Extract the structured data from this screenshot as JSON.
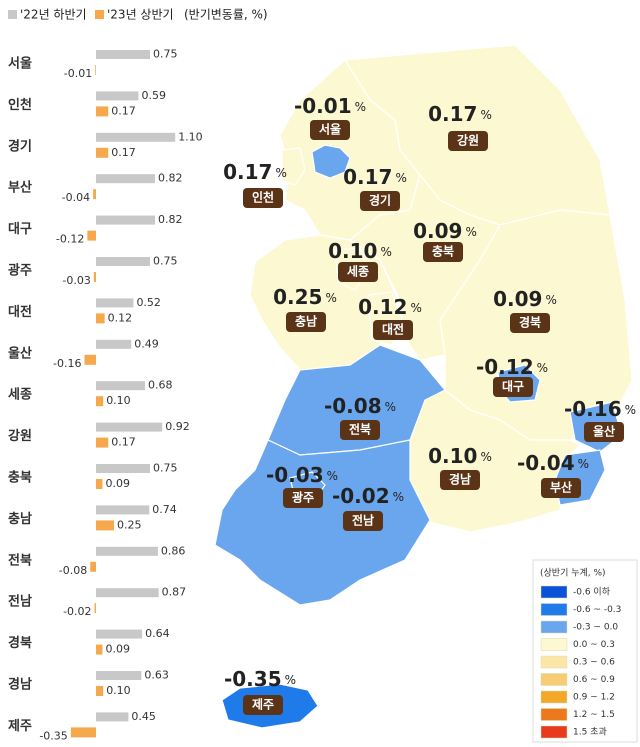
{
  "chart_data": [
    {
      "type": "hbar",
      "subtitle": "(반기변동률, %)",
      "categories": [
        "서울",
        "인천",
        "경기",
        "부산",
        "대구",
        "광주",
        "대전",
        "울산",
        "세종",
        "강원",
        "충북",
        "충남",
        "전북",
        "전남",
        "경북",
        "경남",
        "제주"
      ],
      "series": [
        {
          "name": "'22년 하반기",
          "color": "#c8c8c8",
          "values": [
            0.75,
            0.59,
            1.1,
            0.82,
            0.82,
            0.75,
            0.52,
            0.49,
            0.68,
            0.92,
            0.75,
            0.74,
            0.86,
            0.87,
            0.64,
            0.63,
            0.45
          ],
          "value_labels": [
            "0.75",
            "0.59",
            "1.10",
            "0.82",
            "0.82",
            "0.75",
            "0.52",
            "0.49",
            "0.68",
            "0.92",
            "0.75",
            "0.74",
            "0.86",
            "0.87",
            "0.64",
            "0.63",
            "0.45"
          ]
        },
        {
          "name": "'23년 상반기",
          "color": "#f5a94c",
          "values": [
            -0.01,
            0.17,
            0.17,
            -0.04,
            -0.12,
            -0.03,
            0.12,
            -0.16,
            0.1,
            0.17,
            0.09,
            0.25,
            -0.08,
            -0.02,
            0.09,
            0.1,
            -0.35
          ],
          "value_labels": [
            "-0.01",
            "0.17",
            "0.17",
            "-0.04",
            "-0.12",
            "-0.03",
            "0.12",
            "-0.16",
            "0.10",
            "0.17",
            "0.09",
            "0.25",
            "-0.08",
            "-0.02",
            "0.09",
            "0.10",
            "-0.35"
          ]
        }
      ]
    },
    {
      "type": "map",
      "unit": "%",
      "categories": [
        "서울",
        "인천",
        "경기",
        "부산",
        "대구",
        "광주",
        "대전",
        "울산",
        "세종",
        "강원",
        "충북",
        "충남",
        "전북",
        "전남",
        "경북",
        "경남",
        "제주"
      ],
      "values": [
        -0.01,
        0.17,
        0.17,
        -0.04,
        -0.12,
        -0.03,
        0.12,
        -0.16,
        0.1,
        0.17,
        0.09,
        0.25,
        -0.08,
        -0.02,
        0.09,
        0.1,
        -0.35
      ],
      "value_labels": [
        "-0.01",
        "0.17",
        "0.17",
        "-0.04",
        "-0.12",
        "-0.03",
        "0.12",
        "-0.16",
        "0.10",
        "0.17",
        "0.09",
        "0.25",
        "-0.08",
        "-0.02",
        "0.09",
        "0.10",
        "-0.35"
      ],
      "colors": [
        "#6aa6ee",
        "#fcf8d2",
        "#fcf8d2",
        "#6aa6ee",
        "#6aa6ee",
        "#6aa6ee",
        "#fcf8d2",
        "#6aa6ee",
        "#fcf8d2",
        "#fcf8d2",
        "#fcf8d2",
        "#fcf8d2",
        "#6aa6ee",
        "#6aa6ee",
        "#fcf8d2",
        "#fcf8d2",
        "#1f7bea"
      ],
      "legend_title": "(상반기 누계, %)",
      "legend": [
        {
          "label": "-0.6 이하",
          "color": "#0a52d8"
        },
        {
          "label": "-0.6 ~ -0.3",
          "color": "#1f7bea"
        },
        {
          "label": "-0.3 ~ 0.0",
          "color": "#6aa6ee"
        },
        {
          "label": "0.0 ~ 0.3",
          "color": "#fcf8d2"
        },
        {
          "label": "0.3 ~ 0.6",
          "color": "#fbe6a8"
        },
        {
          "label": "0.6 ~ 0.9",
          "color": "#f7cc74"
        },
        {
          "label": "0.9 ~ 1.2",
          "color": "#f3a82a"
        },
        {
          "label": "1.2 ~ 1.5",
          "color": "#ec7a1c"
        },
        {
          "label": "1.5 초과",
          "color": "#e83a1d"
        }
      ]
    }
  ]
}
